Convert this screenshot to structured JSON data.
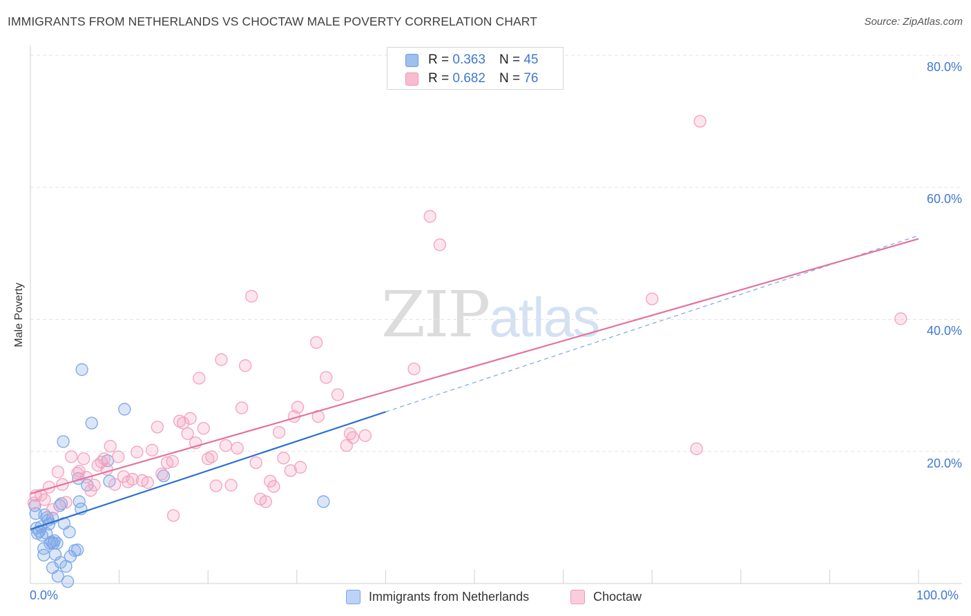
{
  "title": "IMMIGRANTS FROM NETHERLANDS VS CHOCTAW MALE POVERTY CORRELATION CHART",
  "source": "Source: ZipAtlas.com",
  "watermark": {
    "zip": "ZIP",
    "atlas": "atlas"
  },
  "legend_top": {
    "rows": [
      {
        "r_label": "R =",
        "r_value": "0.363",
        "n_label": "N =",
        "n_value": "45",
        "color": "#9ebfef",
        "border": "#6d9be0"
      },
      {
        "r_label": "R =",
        "r_value": "0.682",
        "n_label": "N =",
        "n_value": "76",
        "color": "#f7bcd0",
        "border": "#ef92b1"
      }
    ]
  },
  "legend_bottom": [
    {
      "label": "Immigrants from Netherlands",
      "color": "#bcd3f5",
      "border": "#7aa3e3"
    },
    {
      "label": "Choctaw",
      "color": "#f9cddb",
      "border": "#f099b7"
    }
  ],
  "chart_data": {
    "type": "scatter",
    "title": "IMMIGRANTS FROM NETHERLANDS VS CHOCTAW MALE POVERTY CORRELATION CHART",
    "xlabel": "",
    "ylabel": "Male Poverty",
    "xlim": [
      0,
      100
    ],
    "ylim": [
      0,
      80
    ],
    "x_tick_labels": [
      "0.0%",
      "100.0%"
    ],
    "y_ticks": [
      20,
      40,
      60,
      80
    ],
    "y_tick_labels": [
      "20.0%",
      "40.0%",
      "60.0%",
      "80.0%"
    ],
    "grid": true,
    "series": [
      {
        "name": "Immigrants from Netherlands",
        "color": "#7ba6e6",
        "line_color": "#2a6ed0",
        "trend": {
          "x0": 0,
          "y0": 8.2,
          "x1": 40,
          "y1": 26.0,
          "dashed_to_x": 100,
          "dashed_to_y": 52.7
        },
        "points": [
          [
            0.5,
            11.8
          ],
          [
            0.6,
            10.6
          ],
          [
            0.7,
            8.4
          ],
          [
            0.8,
            7.6
          ],
          [
            1.0,
            7.9
          ],
          [
            1.2,
            8.6
          ],
          [
            1.3,
            7.3
          ],
          [
            1.5,
            5.3
          ],
          [
            1.5,
            4.3
          ],
          [
            1.6,
            10.4
          ],
          [
            1.8,
            7.6
          ],
          [
            1.9,
            10.0
          ],
          [
            2.0,
            9.6
          ],
          [
            2.1,
            9.0
          ],
          [
            2.2,
            6.1
          ],
          [
            2.4,
            6.3
          ],
          [
            2.5,
            9.9
          ],
          [
            2.5,
            2.4
          ],
          [
            2.6,
            6.1
          ],
          [
            2.7,
            6.5
          ],
          [
            2.8,
            4.4
          ],
          [
            3.0,
            6.1
          ],
          [
            3.1,
            1.1
          ],
          [
            3.3,
            11.8
          ],
          [
            3.4,
            3.2
          ],
          [
            3.5,
            12.1
          ],
          [
            3.7,
            21.5
          ],
          [
            3.8,
            9.1
          ],
          [
            4.0,
            2.6
          ],
          [
            4.2,
            0.3
          ],
          [
            4.4,
            7.8
          ],
          [
            4.5,
            4.1
          ],
          [
            5.0,
            5.0
          ],
          [
            5.4,
            15.9
          ],
          [
            5.5,
            12.4
          ],
          [
            5.7,
            11.3
          ],
          [
            5.8,
            32.4
          ],
          [
            6.4,
            14.9
          ],
          [
            6.9,
            24.3
          ],
          [
            8.7,
            18.6
          ],
          [
            8.9,
            15.5
          ],
          [
            10.6,
            26.4
          ],
          [
            15.0,
            16.3
          ],
          [
            33.0,
            12.4
          ],
          [
            5.3,
            5.1
          ]
        ]
      },
      {
        "name": "Choctaw",
        "color": "#f3a1bd",
        "line_color": "#e4729b",
        "trend": {
          "x0": 0,
          "y0": 13.6,
          "x1": 100,
          "y1": 52.2
        },
        "points": [
          [
            0.4,
            12.2
          ],
          [
            0.6,
            13.3
          ],
          [
            1.2,
            13.4
          ],
          [
            1.6,
            12.7
          ],
          [
            2.1,
            14.6
          ],
          [
            2.5,
            11.2
          ],
          [
            3.1,
            16.9
          ],
          [
            3.6,
            15.0
          ],
          [
            4.0,
            12.3
          ],
          [
            4.6,
            19.2
          ],
          [
            5.3,
            16.7
          ],
          [
            5.5,
            17.0
          ],
          [
            6.0,
            18.9
          ],
          [
            6.3,
            16.1
          ],
          [
            6.8,
            14.1
          ],
          [
            7.2,
            14.9
          ],
          [
            7.6,
            17.9
          ],
          [
            8.0,
            18.4
          ],
          [
            8.3,
            18.9
          ],
          [
            8.6,
            17.3
          ],
          [
            9.0,
            20.8
          ],
          [
            9.5,
            15.0
          ],
          [
            9.9,
            19.2
          ],
          [
            10.5,
            16.2
          ],
          [
            11.0,
            15.4
          ],
          [
            11.5,
            15.8
          ],
          [
            12.0,
            19.9
          ],
          [
            12.6,
            15.6
          ],
          [
            13.2,
            15.3
          ],
          [
            13.7,
            20.2
          ],
          [
            14.3,
            23.7
          ],
          [
            14.8,
            16.6
          ],
          [
            15.4,
            18.3
          ],
          [
            16.0,
            18.5
          ],
          [
            16.1,
            10.3
          ],
          [
            16.8,
            24.6
          ],
          [
            17.2,
            24.3
          ],
          [
            17.7,
            22.7
          ],
          [
            18.0,
            25.0
          ],
          [
            18.6,
            21.3
          ],
          [
            19.0,
            31.1
          ],
          [
            19.5,
            23.5
          ],
          [
            20.0,
            18.9
          ],
          [
            20.4,
            19.2
          ],
          [
            20.9,
            14.8
          ],
          [
            21.5,
            33.9
          ],
          [
            22.0,
            20.9
          ],
          [
            22.6,
            14.9
          ],
          [
            23.3,
            20.5
          ],
          [
            23.8,
            26.6
          ],
          [
            24.2,
            33.0
          ],
          [
            24.9,
            43.5
          ],
          [
            25.4,
            18.3
          ],
          [
            25.9,
            12.8
          ],
          [
            26.5,
            12.4
          ],
          [
            27.0,
            15.5
          ],
          [
            27.4,
            14.7
          ],
          [
            28.0,
            22.9
          ],
          [
            28.5,
            19.0
          ],
          [
            29.3,
            17.1
          ],
          [
            29.7,
            25.3
          ],
          [
            30.1,
            26.7
          ],
          [
            30.4,
            17.6
          ],
          [
            32.2,
            36.5
          ],
          [
            32.4,
            25.3
          ],
          [
            33.3,
            31.2
          ],
          [
            34.6,
            28.6
          ],
          [
            35.6,
            20.9
          ],
          [
            36.0,
            22.7
          ],
          [
            36.3,
            22.1
          ],
          [
            37.7,
            22.4
          ],
          [
            43.2,
            32.5
          ],
          [
            45.0,
            55.6
          ],
          [
            46.1,
            51.3
          ],
          [
            75.0,
            20.4
          ],
          [
            75.4,
            70.0
          ]
        ],
        "extra_points": [
          [
            70.0,
            43.1
          ],
          [
            98.0,
            40.1
          ]
        ]
      }
    ]
  }
}
